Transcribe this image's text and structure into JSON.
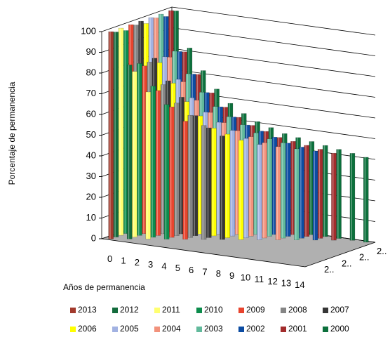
{
  "chart_data": {
    "type": "bar3d",
    "y_label": "Porcentaje de permanencia",
    "x_label": "Años de permanencia",
    "categories": [
      "0",
      "1",
      "2",
      "3",
      "4",
      "5",
      "6",
      "7",
      "8",
      "9",
      "10",
      "11",
      "12",
      "13",
      "14"
    ],
    "depth_labels": [
      "2..",
      "2..",
      "2..",
      "2.."
    ],
    "ylim": [
      0,
      100
    ],
    "yticks": [
      0,
      10,
      20,
      30,
      40,
      50,
      60,
      70,
      80,
      90,
      100
    ],
    "grid": true,
    "series": [
      {
        "name": "2013",
        "color": "#a23a2c",
        "values": [
          100,
          null,
          null,
          null,
          null,
          null,
          null,
          null,
          null,
          null,
          null,
          null,
          null,
          null,
          null
        ]
      },
      {
        "name": "2012",
        "color": "#136b3c",
        "values": [
          99,
          84,
          null,
          null,
          null,
          null,
          null,
          null,
          null,
          null,
          null,
          null,
          null,
          null,
          null
        ]
      },
      {
        "name": "2011",
        "color": "#ffff70",
        "values": [
          100,
          80,
          71,
          null,
          null,
          null,
          null,
          null,
          null,
          null,
          null,
          null,
          null,
          null,
          null
        ]
      },
      {
        "name": "2010",
        "color": "#0c8c4c",
        "values": [
          98,
          83,
          73,
          65,
          null,
          null,
          null,
          null,
          null,
          null,
          null,
          null,
          null,
          null,
          null
        ]
      },
      {
        "name": "2009",
        "color": "#e8442e",
        "values": [
          100,
          81,
          70,
          63,
          57,
          null,
          null,
          null,
          null,
          null,
          null,
          null,
          null,
          null,
          null
        ]
      },
      {
        "name": "2008",
        "color": "#858585",
        "values": [
          99,
          82,
          72,
          64,
          59,
          55,
          null,
          null,
          null,
          null,
          null,
          null,
          null,
          null,
          null
        ]
      },
      {
        "name": "2007",
        "color": "#363636",
        "values": [
          100,
          83,
          73,
          66,
          58,
          53,
          50,
          null,
          null,
          null,
          null,
          null,
          null,
          null,
          null
        ]
      },
      {
        "name": "2006",
        "color": "#ffff00",
        "values": [
          98,
          80,
          71,
          63,
          57,
          52,
          50,
          48,
          null,
          null,
          null,
          null,
          null,
          null,
          null
        ]
      },
      {
        "name": "2005",
        "color": "#a2b2e2",
        "values": [
          100,
          82,
          72,
          64,
          58,
          54,
          51,
          48,
          46,
          null,
          null,
          null,
          null,
          null,
          null
        ]
      },
      {
        "name": "2004",
        "color": "#f2927c",
        "values": [
          99,
          81,
          70,
          62,
          57,
          53,
          50,
          48,
          46,
          45,
          null,
          null,
          null,
          null,
          null
        ]
      },
      {
        "name": "2003",
        "color": "#62ba9c",
        "values": [
          100,
          83,
          73,
          65,
          59,
          55,
          52,
          49,
          47,
          46,
          44,
          null,
          null,
          null,
          null
        ]
      },
      {
        "name": "2002",
        "color": "#0c4ca2",
        "values": [
          98,
          82,
          72,
          64,
          58,
          54,
          51,
          49,
          47,
          45,
          44,
          43,
          null,
          null,
          null
        ]
      },
      {
        "name": "2001",
        "color": "#a22c2c",
        "values": [
          100,
          81,
          71,
          63,
          57,
          53,
          50,
          48,
          46,
          45,
          44,
          43,
          42,
          null,
          null
        ]
      },
      {
        "name": "2000",
        "color": "#0c703c",
        "values": [
          99,
          82,
          72,
          64,
          58,
          54,
          51,
          49,
          47,
          46,
          45,
          44,
          43,
          42,
          41
        ]
      }
    ]
  }
}
